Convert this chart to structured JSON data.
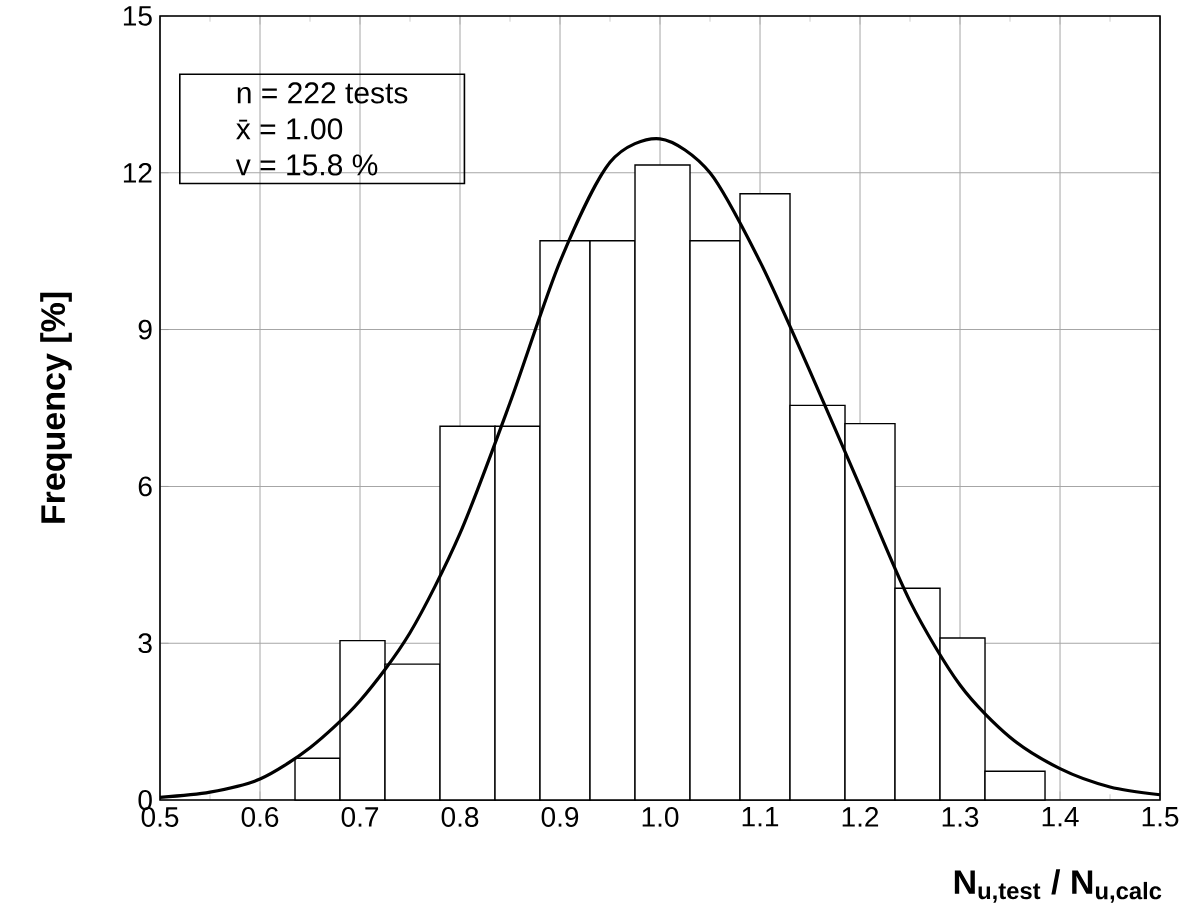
{
  "chart_data": {
    "type": "histogram",
    "xlabel": "N$_{u,test}$ / N$_{u,calc}$",
    "ylabel": "Frequency [%]",
    "annotations": [
      "n = 222 tests",
      "x̄ = 1.00",
      "v = 15.8 %"
    ],
    "bins": [
      0.635,
      0.68,
      0.725,
      0.78,
      0.835,
      0.88,
      0.93,
      0.975,
      1.03,
      1.08,
      1.13,
      1.185,
      1.235,
      1.28,
      1.325,
      1.385
    ],
    "values": [
      0.8,
      3.05,
      2.6,
      7.15,
      7.15,
      10.7,
      10.7,
      12.15,
      10.7,
      11.6,
      7.55,
      7.2,
      4.05,
      3.1,
      0.55
    ],
    "color": "#ffffff",
    "series": [
      {
        "type": "line",
        "color": "#000000",
        "x": [
          0.5,
          0.55,
          0.6,
          0.65,
          0.7,
          0.75,
          0.8,
          0.85,
          0.9,
          0.95,
          1.0,
          1.05,
          1.1,
          1.15,
          1.2,
          1.25,
          1.3,
          1.35,
          1.4,
          1.45,
          1.5
        ],
        "values": [
          0.05,
          0.15,
          0.4,
          1.0,
          1.9,
          3.2,
          5.1,
          7.6,
          10.3,
          12.2,
          12.65,
          12.0,
          10.3,
          8.2,
          6.0,
          3.8,
          2.2,
          1.2,
          0.6,
          0.25,
          0.1
        ]
      }
    ],
    "xlim": [
      0.5,
      1.5
    ],
    "ylim": [
      0,
      15
    ],
    "xticks": [
      0.5,
      0.6,
      0.7,
      0.8,
      0.9,
      {
        "value": 1.0,
        "label": "1.0"
      },
      1.1,
      1.2,
      1.3,
      1.4,
      1.5
    ],
    "yticks": [
      0,
      3,
      6,
      9,
      12,
      15
    ],
    "grid": true
  }
}
